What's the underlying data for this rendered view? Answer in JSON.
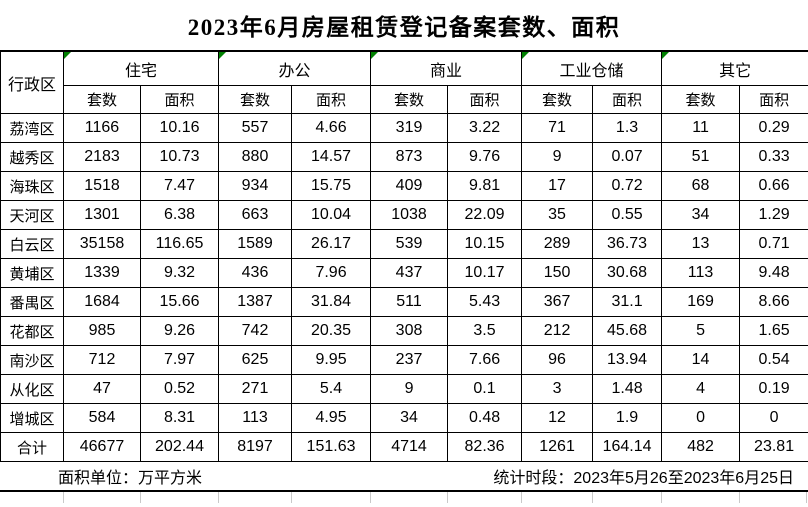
{
  "title": "2023年6月房屋租赁登记备案套数、面积",
  "table": {
    "corner_header": "行政区",
    "groups": [
      {
        "label": "住宅"
      },
      {
        "label": "办公"
      },
      {
        "label": "商业"
      },
      {
        "label": "工业仓储"
      },
      {
        "label": "其它"
      }
    ],
    "sub_headers": [
      "套数",
      "面积"
    ],
    "rows": [
      {
        "district": "荔湾区",
        "values": [
          "1166",
          "10.16",
          "557",
          "4.66",
          "319",
          "3.22",
          "71",
          "1.3",
          "11",
          "0.29"
        ]
      },
      {
        "district": "越秀区",
        "values": [
          "2183",
          "10.73",
          "880",
          "14.57",
          "873",
          "9.76",
          "9",
          "0.07",
          "51",
          "0.33"
        ]
      },
      {
        "district": "海珠区",
        "values": [
          "1518",
          "7.47",
          "934",
          "15.75",
          "409",
          "9.81",
          "17",
          "0.72",
          "68",
          "0.66"
        ]
      },
      {
        "district": "天河区",
        "values": [
          "1301",
          "6.38",
          "663",
          "10.04",
          "1038",
          "22.09",
          "35",
          "0.55",
          "34",
          "1.29"
        ]
      },
      {
        "district": "白云区",
        "values": [
          "35158",
          "116.65",
          "1589",
          "26.17",
          "539",
          "10.15",
          "289",
          "36.73",
          "13",
          "0.71"
        ]
      },
      {
        "district": "黄埔区",
        "values": [
          "1339",
          "9.32",
          "436",
          "7.96",
          "437",
          "10.17",
          "150",
          "30.68",
          "113",
          "9.48"
        ]
      },
      {
        "district": "番禺区",
        "values": [
          "1684",
          "15.66",
          "1387",
          "31.84",
          "511",
          "5.43",
          "367",
          "31.1",
          "169",
          "8.66"
        ]
      },
      {
        "district": "花都区",
        "values": [
          "985",
          "9.26",
          "742",
          "20.35",
          "308",
          "3.5",
          "212",
          "45.68",
          "5",
          "1.65"
        ]
      },
      {
        "district": "南沙区",
        "values": [
          "712",
          "7.97",
          "625",
          "9.95",
          "237",
          "7.66",
          "96",
          "13.94",
          "14",
          "0.54"
        ]
      },
      {
        "district": "从化区",
        "values": [
          "47",
          "0.52",
          "271",
          "5.4",
          "9",
          "0.1",
          "3",
          "1.48",
          "4",
          "0.19"
        ]
      },
      {
        "district": "增城区",
        "values": [
          "584",
          "8.31",
          "113",
          "4.95",
          "34",
          "0.48",
          "12",
          "1.9",
          "0",
          "0"
        ]
      },
      {
        "district": "合计",
        "values": [
          "46677",
          "202.44",
          "8197",
          "151.63",
          "4714",
          "82.36",
          "1261",
          "164.14",
          "482",
          "23.81"
        ]
      }
    ]
  },
  "footer": {
    "area_unit": "面积单位：万平方米",
    "stat_period": "统计时段：2023年5月26至2023年6月25日"
  },
  "colors": {
    "flag_green": "#008000",
    "border_black": "#000000",
    "grid_gray": "#c9c9c9",
    "background": "#ffffff"
  }
}
